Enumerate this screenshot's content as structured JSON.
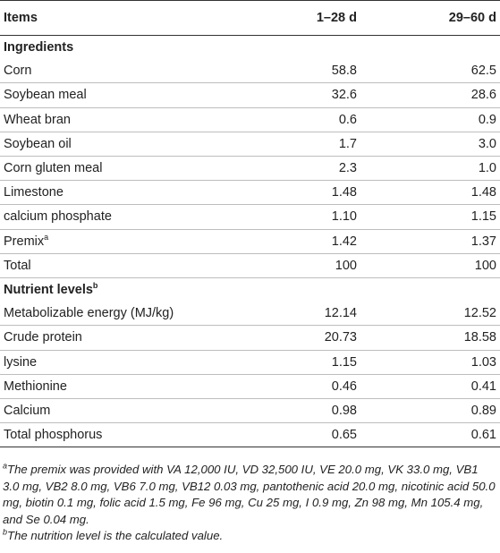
{
  "table": {
    "headers": [
      "Items",
      "1–28 d",
      "29–60 d"
    ],
    "sections": [
      {
        "title": "Ingredients",
        "title_sup": "",
        "rows": [
          {
            "item": "Corn",
            "sup": "",
            "v1": "58.8",
            "v2": "62.5"
          },
          {
            "item": "Soybean meal",
            "sup": "",
            "v1": "32.6",
            "v2": "28.6"
          },
          {
            "item": "Wheat bran",
            "sup": "",
            "v1": "0.6",
            "v2": "0.9"
          },
          {
            "item": "Soybean oil",
            "sup": "",
            "v1": "1.7",
            "v2": "3.0"
          },
          {
            "item": "Corn gluten meal",
            "sup": "",
            "v1": "2.3",
            "v2": "1.0"
          },
          {
            "item": "Limestone",
            "sup": "",
            "v1": "1.48",
            "v2": "1.48"
          },
          {
            "item": "calcium phosphate",
            "sup": "",
            "v1": "1.10",
            "v2": "1.15"
          },
          {
            "item": "Premix",
            "sup": "a",
            "v1": "1.42",
            "v2": "1.37"
          },
          {
            "item": "Total",
            "sup": "",
            "v1": "100",
            "v2": "100"
          }
        ]
      },
      {
        "title": "Nutrient levels",
        "title_sup": "b",
        "rows": [
          {
            "item": "Metabolizable energy (MJ/kg)",
            "sup": "",
            "v1": "12.14",
            "v2": "12.52"
          },
          {
            "item": "Crude protein",
            "sup": "",
            "v1": "20.73",
            "v2": "18.58"
          },
          {
            "item": "lysine",
            "sup": "",
            "v1": "1.15",
            "v2": "1.03"
          },
          {
            "item": "Methionine",
            "sup": "",
            "v1": "0.46",
            "v2": "0.41"
          },
          {
            "item": "Calcium",
            "sup": "",
            "v1": "0.98",
            "v2": "0.89"
          },
          {
            "item": "Total phosphorus",
            "sup": "",
            "v1": "0.65",
            "v2": "0.61"
          }
        ]
      }
    ]
  },
  "footnotes": [
    {
      "mark": "a",
      "text": "The premix was provided with VA 12,000 IU, VD 32,500 IU, VE 20.0 mg, VK 33.0 mg, VB1 3.0 mg, VB2 8.0 mg, VB6 7.0 mg, VB12 0.03 mg, pantothenic acid 20.0 mg, nicotinic acid 50.0 mg, biotin 0.1 mg, folic acid 1.5 mg, Fe 96 mg, Cu 25 mg, I 0.9 mg, Zn 98 mg, Mn 105.4 mg, and Se 0.04 mg."
    },
    {
      "mark": "b",
      "text": "The nutrition level is the calculated value."
    }
  ]
}
